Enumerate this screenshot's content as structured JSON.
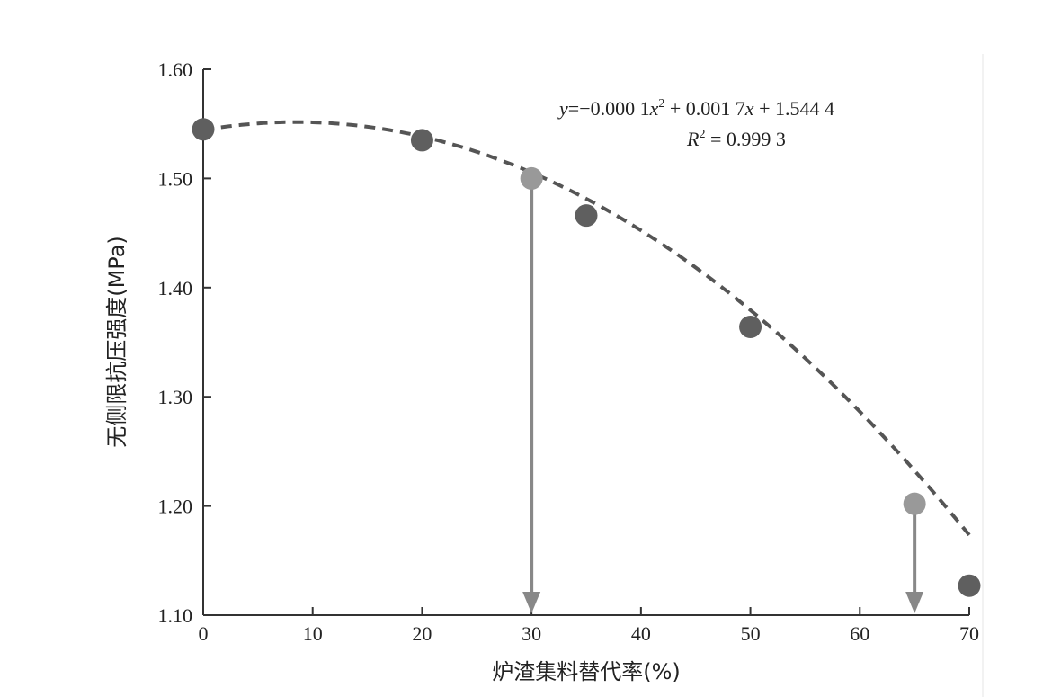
{
  "chart_data": {
    "type": "scatter",
    "xlabel": "炉渣集料替代率(%)",
    "ylabel": "无侧限抗压强度(MPa)",
    "xlim": [
      0,
      70
    ],
    "ylim": [
      1.1,
      1.6
    ],
    "x_ticks": [
      "0",
      "10",
      "20",
      "30",
      "40",
      "50",
      "60",
      "70"
    ],
    "y_ticks": [
      "1.10",
      "1.20",
      "1.30",
      "1.40",
      "1.50",
      "1.60"
    ],
    "grid": false,
    "points": [
      {
        "x": 0,
        "y": 1.545,
        "highlight": false
      },
      {
        "x": 20,
        "y": 1.535,
        "highlight": false
      },
      {
        "x": 35,
        "y": 1.466,
        "highlight": false
      },
      {
        "x": 50,
        "y": 1.364,
        "highlight": false
      },
      {
        "x": 70,
        "y": 1.127,
        "highlight": false
      },
      {
        "x": 30,
        "y": 1.5,
        "highlight": true
      },
      {
        "x": 65,
        "y": 1.202,
        "highlight": true
      }
    ],
    "fit": {
      "a": -0.0001,
      "b": 0.0017,
      "c": 1.5444,
      "style": "dashed"
    },
    "annotations": [
      {
        "x": 30,
        "y_from": 1.5,
        "y_to": 1.1,
        "type": "down-arrow"
      },
      {
        "x": 65,
        "y_from": 1.202,
        "y_to": 1.1,
        "type": "down-arrow"
      }
    ],
    "equation": {
      "y_var": "y",
      "eq_sign": "=",
      "c1": "−0.000 1",
      "x1": "x",
      "exp": "2",
      "plus1": " + 0.001 7",
      "x2": "x",
      "plus2": " + 1.544 4",
      "r_var": "R",
      "r_exp": "2",
      "r_value": " = 0.999 3"
    },
    "colors": {
      "point": "#5f5f5f",
      "highlight": "#999999",
      "fit_line": "#555555",
      "arrow": "#888888",
      "axis": "#333333"
    }
  }
}
